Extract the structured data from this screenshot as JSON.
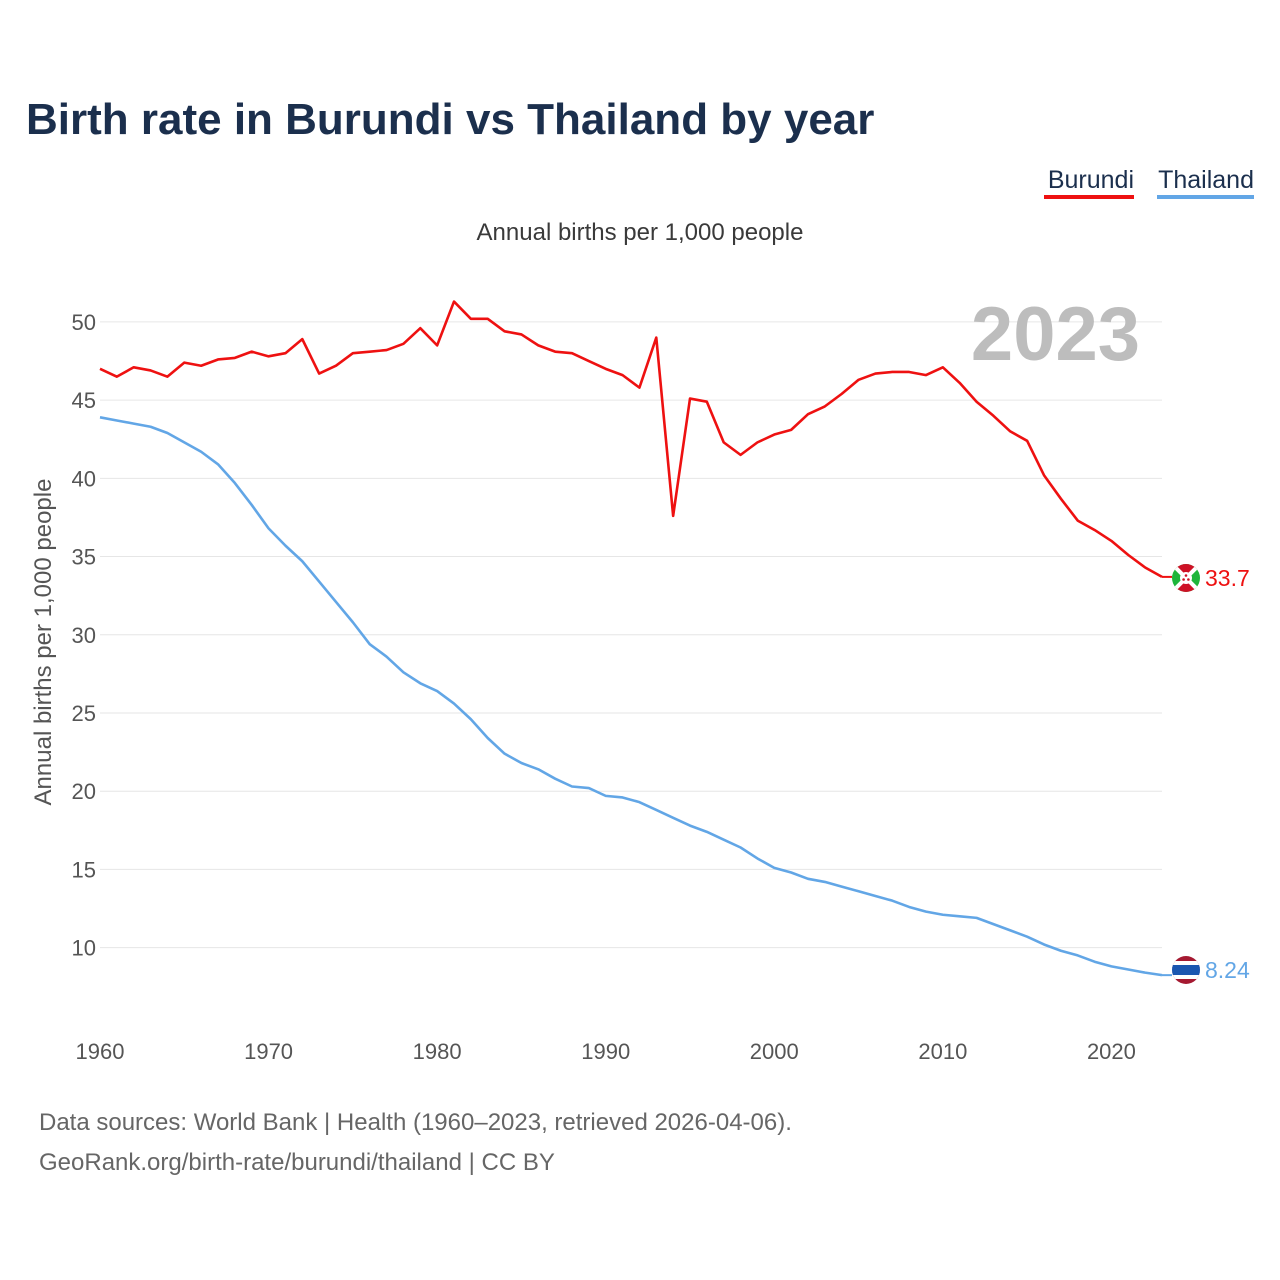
{
  "chart_data": {
    "type": "line",
    "title": "Birth rate in Burundi vs Thailand by year",
    "subtitle": "Annual births per 1,000 people",
    "ylabel": "Annual births per 1,000 people",
    "xlabel": "",
    "year_overlay": "2023",
    "x_ticks": [
      1960,
      1970,
      1980,
      1990,
      2000,
      2010,
      2020
    ],
    "y_ticks": [
      10,
      15,
      20,
      25,
      30,
      35,
      40,
      45,
      50
    ],
    "xlim": [
      1960,
      2023
    ],
    "ylim": [
      5.5,
      53
    ],
    "grid": true,
    "legend_position": "top-right",
    "x": [
      1960,
      1961,
      1962,
      1963,
      1964,
      1965,
      1966,
      1967,
      1968,
      1969,
      1970,
      1971,
      1972,
      1973,
      1974,
      1975,
      1976,
      1977,
      1978,
      1979,
      1980,
      1981,
      1982,
      1983,
      1984,
      1985,
      1986,
      1987,
      1988,
      1989,
      1990,
      1991,
      1992,
      1993,
      1994,
      1995,
      1996,
      1997,
      1998,
      1999,
      2000,
      2001,
      2002,
      2003,
      2004,
      2005,
      2006,
      2007,
      2008,
      2009,
      2010,
      2011,
      2012,
      2013,
      2014,
      2015,
      2016,
      2017,
      2018,
      2019,
      2020,
      2021,
      2022,
      2023
    ],
    "series": [
      {
        "name": "Burundi",
        "color": "#ee1111",
        "end_label": "33.7",
        "values": [
          47.0,
          46.5,
          47.1,
          46.9,
          46.5,
          47.4,
          47.2,
          47.6,
          47.7,
          48.1,
          47.8,
          48.0,
          48.9,
          46.7,
          47.2,
          48.0,
          48.1,
          48.2,
          48.6,
          49.6,
          48.5,
          51.3,
          50.2,
          50.2,
          49.4,
          49.2,
          48.5,
          48.1,
          48.0,
          47.5,
          47.0,
          46.6,
          45.8,
          49.0,
          37.6,
          45.1,
          44.9,
          42.3,
          41.5,
          42.3,
          42.8,
          43.1,
          44.1,
          44.6,
          45.4,
          46.3,
          46.7,
          46.8,
          46.8,
          46.6,
          47.1,
          46.1,
          44.9,
          44.0,
          43.0,
          42.4,
          40.2,
          38.7,
          37.3,
          36.7,
          36.0,
          35.1,
          34.3,
          33.7
        ]
      },
      {
        "name": "Thailand",
        "color": "#62a6e6",
        "end_label": "8.24",
        "values": [
          43.9,
          43.7,
          43.5,
          43.3,
          42.9,
          42.3,
          41.7,
          40.9,
          39.7,
          38.3,
          36.8,
          35.7,
          34.7,
          33.4,
          32.1,
          30.8,
          29.4,
          28.6,
          27.6,
          26.9,
          26.4,
          25.6,
          24.6,
          23.4,
          22.4,
          21.8,
          21.4,
          20.8,
          20.3,
          20.2,
          19.7,
          19.6,
          19.3,
          18.8,
          18.3,
          17.8,
          17.4,
          16.9,
          16.4,
          15.7,
          15.1,
          14.8,
          14.4,
          14.2,
          13.9,
          13.6,
          13.3,
          13.0,
          12.6,
          12.3,
          12.1,
          12.0,
          11.9,
          11.5,
          11.1,
          10.7,
          10.2,
          9.8,
          9.5,
          9.1,
          8.8,
          8.6,
          8.4,
          8.24
        ]
      }
    ]
  },
  "legend": [
    {
      "label": "Burundi",
      "color": "#ee1111"
    },
    {
      "label": "Thailand",
      "color": "#62a6e6"
    }
  ],
  "flags": {
    "burundi": {
      "name": "burundi-flag-icon",
      "colors": [
        "#1eb53a",
        "#ce1126",
        "#ffffff"
      ]
    },
    "thailand": {
      "name": "thailand-flag-icon",
      "colors": [
        "#a51931",
        "#ffffff",
        "#2d2a4a"
      ]
    }
  },
  "footer": {
    "line1": "Data sources: World Bank | Health (1960–2023, retrieved 2026-04-06).",
    "line2": "GeoRank.org/birth-rate/burundi/thailand | CC BY"
  }
}
